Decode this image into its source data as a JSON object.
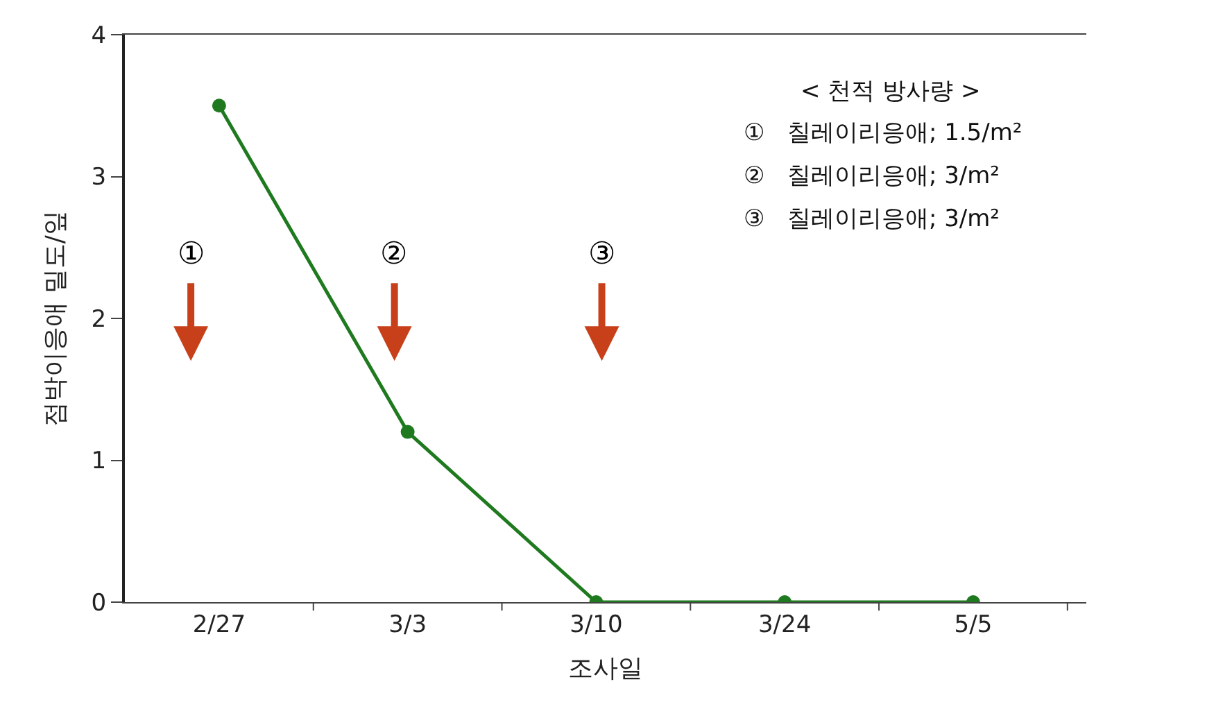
{
  "chart_data": {
    "type": "line",
    "xlabel": "조사일",
    "ylabel": "점박이응애 밀도/잎",
    "categories": [
      "2/27",
      "3/3",
      "3/10",
      "3/24",
      "5/5"
    ],
    "series": [
      {
        "color": "#1f7a1f",
        "values": [
          3.5,
          1.2,
          0,
          0,
          0
        ]
      }
    ],
    "ylim": [
      0,
      4
    ],
    "yticks": [
      0,
      1,
      2,
      3,
      4
    ],
    "marker": "circle",
    "line_style": "solid",
    "annotations": [
      "①",
      "②",
      "③",
      "< 천적 방사량 >",
      "①   칠레이리응애; 1.5/m²",
      "②   칠레이리응애; 3/m²",
      "③   칠레이리응애; 3/m²"
    ]
  }
}
